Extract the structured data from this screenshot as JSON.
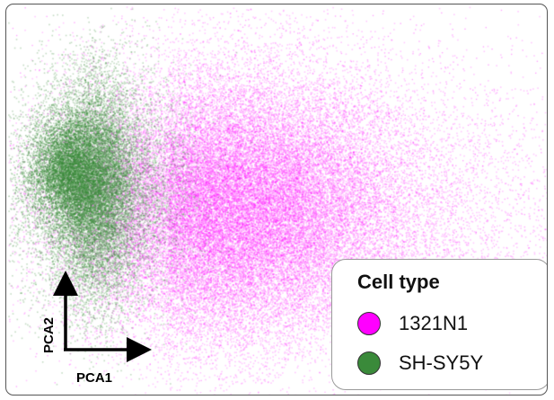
{
  "chart_data": {
    "type": "scatter",
    "xlabel": "PCA1",
    "ylabel": "PCA2",
    "legend": {
      "title": "Cell type",
      "placement": "bottom-right"
    },
    "grid": false,
    "series": [
      {
        "name": "1321N1",
        "color": "#ff00ff"
      },
      {
        "name": "SH-SY5Y",
        "color": "#3a8a3a"
      }
    ]
  }
}
